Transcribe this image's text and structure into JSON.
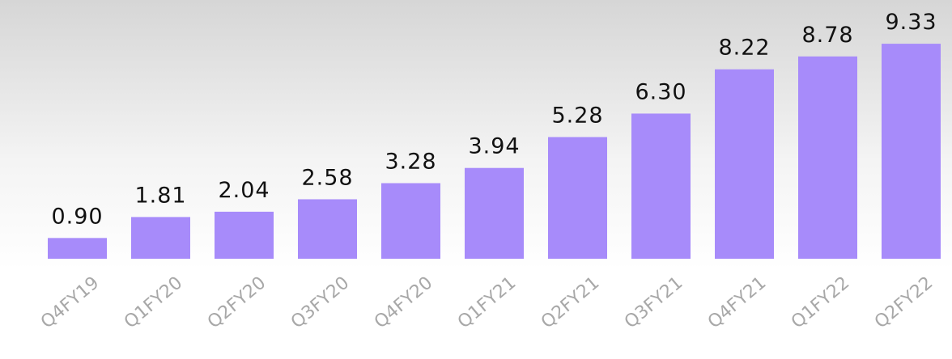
{
  "chart_data": {
    "type": "bar",
    "categories": [
      "Q4FY19",
      "Q1FY20",
      "Q2FY20",
      "Q3FY20",
      "Q4FY20",
      "Q1FY21",
      "Q2FY21",
      "Q3FY21",
      "Q4FY21",
      "Q1FY22",
      "Q2FY22"
    ],
    "values": [
      0.9,
      1.81,
      2.04,
      2.58,
      3.28,
      3.94,
      5.28,
      6.3,
      8.22,
      8.78,
      9.33
    ],
    "value_labels": [
      "0.90",
      "1.81",
      "2.04",
      "2.58",
      "3.28",
      "3.94",
      "5.28",
      "6.30",
      "8.22",
      "8.78",
      "9.33"
    ],
    "color": "#a78bfa",
    "ylim": [
      0,
      10
    ]
  }
}
